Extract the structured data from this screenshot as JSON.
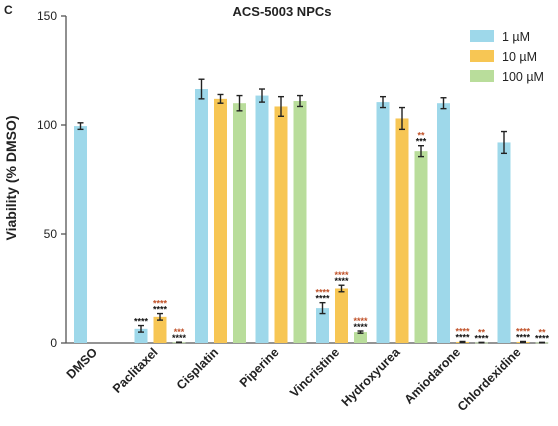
{
  "panel_label": "C",
  "colors": {
    "1 µM": "#9ed8ea",
    "10 µM": "#f7c654",
    "100 µM": "#b9dd9b",
    "sig_black": "#111111",
    "sig_red": "#c0522a"
  },
  "chart_data": {
    "type": "bar",
    "title": "ACS-5003 NPCs",
    "ylabel": "Viability (% DMSO)",
    "xlabel": "",
    "ylim": [
      0,
      150
    ],
    "yticks": [
      0,
      50,
      100,
      150
    ],
    "grid": false,
    "legend_position": "top-right",
    "categories": [
      "DMSO",
      "Paclitaxel",
      "Cisplatin",
      "Piperine",
      "Vincristine",
      "Hydroxyurea",
      "Amiodarone",
      "Chlordexidine"
    ],
    "series": [
      {
        "name": "1 µM",
        "values": [
          99.5,
          6.5,
          116.5,
          113.5,
          16,
          110.5,
          110,
          92
        ],
        "errors": [
          1.5,
          1.5,
          4.5,
          3,
          2.5,
          2.5,
          2.5,
          5
        ],
        "sig_black": [
          "",
          "****",
          "",
          "",
          "****",
          "",
          "",
          ""
        ],
        "sig_red": [
          "",
          "",
          "",
          "",
          "****",
          "",
          "",
          ""
        ]
      },
      {
        "name": "10 µM",
        "values": [
          null,
          12,
          112,
          108.5,
          25,
          103,
          0.5,
          0.5
        ],
        "errors": [
          null,
          1.5,
          2,
          4.5,
          1.5,
          5,
          0.2,
          0.2
        ],
        "sig_black": [
          "",
          "****",
          "",
          "",
          "****",
          "",
          "****",
          "****"
        ],
        "sig_red": [
          "",
          "****",
          "",
          "",
          "****",
          "",
          "****",
          "****"
        ]
      },
      {
        "name": "100 µM",
        "values": [
          null,
          0.3,
          110,
          111,
          5,
          88,
          0.2,
          0.2
        ],
        "errors": [
          null,
          0.1,
          3.5,
          2.5,
          0.5,
          2.5,
          0.1,
          0.1
        ],
        "sig_black": [
          "",
          "****",
          "",
          "",
          "****",
          "***",
          "****",
          "****"
        ],
        "sig_red": [
          "",
          "***",
          "",
          "",
          "****",
          "**",
          "**",
          "**"
        ]
      }
    ]
  }
}
